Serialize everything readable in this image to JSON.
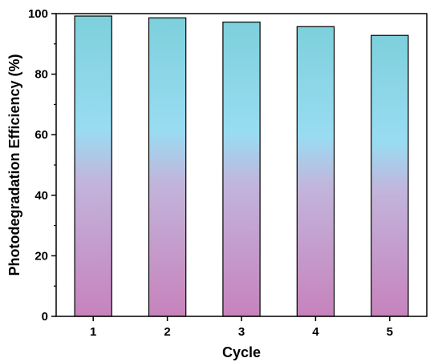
{
  "chart_data": {
    "type": "bar",
    "title": "",
    "xlabel": "Cycle",
    "ylabel": "Photodegradation Efficiency (%)",
    "categories": [
      "1",
      "2",
      "3",
      "4",
      "5"
    ],
    "values": [
      99.2,
      98.6,
      97.2,
      95.7,
      92.8
    ],
    "ylim": [
      0,
      100
    ],
    "yticks": [
      0,
      20,
      40,
      60,
      80,
      100
    ],
    "grid": false,
    "legend": "none",
    "bar_gradient": {
      "top": "#7dd0dc",
      "middle": "#99dcf2",
      "lower_middle": "#c2b5dc",
      "bottom": "#c782bc"
    },
    "bar_edge_color": "#000000"
  }
}
